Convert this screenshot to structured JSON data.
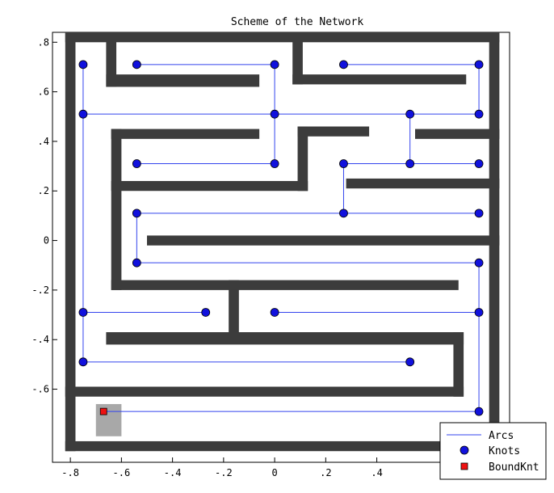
{
  "chart_data": {
    "type": "scatter",
    "title": "Scheme of the Network",
    "xlabel": "",
    "ylabel": "",
    "xlim": [
      -0.87,
      0.92
    ],
    "ylim": [
      -0.895,
      0.84
    ],
    "x_ticks": [
      -0.8,
      -0.6,
      -0.4,
      -0.2,
      0,
      0.2,
      0.4
    ],
    "y_ticks": [
      0.8,
      0.6,
      0.4,
      0.2,
      0,
      -0.2,
      -0.4,
      -0.6
    ],
    "legend": {
      "placement": "bottom-right",
      "entries": [
        "Arcs",
        "Knots",
        "BoundKnt"
      ]
    },
    "colors": {
      "arc": "#3344ee",
      "knot": "#1111dd",
      "bound_knot": "#ee1111",
      "wall": "#3c3c3c",
      "bound_region": "#a8a8a8"
    },
    "walls": [
      {
        "x1": -0.82,
        "y1": 0.8,
        "x2": 0.88,
        "y2": 0.84
      },
      {
        "x1": -0.82,
        "y1": -0.85,
        "x2": 0.88,
        "y2": -0.81
      },
      {
        "x1": -0.82,
        "y1": -0.85,
        "x2": -0.78,
        "y2": 0.84
      },
      {
        "x1": 0.84,
        "y1": -0.85,
        "x2": 0.88,
        "y2": 0.84
      },
      {
        "x1": -0.66,
        "y1": 0.62,
        "x2": -0.06,
        "y2": 0.67
      },
      {
        "x1": -0.66,
        "y1": 0.62,
        "x2": -0.62,
        "y2": 0.84
      },
      {
        "x1": 0.07,
        "y1": 0.63,
        "x2": 0.75,
        "y2": 0.67
      },
      {
        "x1": 0.07,
        "y1": 0.63,
        "x2": 0.11,
        "y2": 0.84
      },
      {
        "x1": -0.64,
        "y1": 0.41,
        "x2": -0.06,
        "y2": 0.45
      },
      {
        "x1": 0.09,
        "y1": 0.42,
        "x2": 0.37,
        "y2": 0.46
      },
      {
        "x1": 0.09,
        "y1": 0.2,
        "x2": 0.13,
        "y2": 0.46
      },
      {
        "x1": 0.55,
        "y1": 0.41,
        "x2": 0.88,
        "y2": 0.45
      },
      {
        "x1": -0.64,
        "y1": -0.2,
        "x2": -0.6,
        "y2": 0.45
      },
      {
        "x1": -0.64,
        "y1": 0.2,
        "x2": 0.13,
        "y2": 0.24
      },
      {
        "x1": 0.28,
        "y1": 0.21,
        "x2": 0.88,
        "y2": 0.25
      },
      {
        "x1": -0.5,
        "y1": -0.02,
        "x2": 0.88,
        "y2": 0.02
      },
      {
        "x1": -0.64,
        "y1": -0.2,
        "x2": 0.72,
        "y2": -0.16
      },
      {
        "x1": -0.18,
        "y1": -0.39,
        "x2": -0.14,
        "y2": -0.16
      },
      {
        "x1": -0.66,
        "y1": -0.42,
        "x2": 0.74,
        "y2": -0.37
      },
      {
        "x1": 0.7,
        "y1": -0.63,
        "x2": 0.74,
        "y2": -0.37
      },
      {
        "x1": -0.82,
        "y1": -0.63,
        "x2": 0.74,
        "y2": -0.59
      }
    ],
    "bound_region": {
      "x1": -0.7,
      "y1": -0.79,
      "x2": -0.6,
      "y2": -0.66
    },
    "knots": [
      [
        -0.75,
        0.71
      ],
      [
        -0.54,
        0.71
      ],
      [
        0.0,
        0.71
      ],
      [
        0.27,
        0.71
      ],
      [
        0.8,
        0.71
      ],
      [
        -0.75,
        0.51
      ],
      [
        0.0,
        0.51
      ],
      [
        0.53,
        0.51
      ],
      [
        0.8,
        0.51
      ],
      [
        -0.54,
        0.31
      ],
      [
        0.0,
        0.31
      ],
      [
        0.27,
        0.31
      ],
      [
        0.53,
        0.31
      ],
      [
        0.8,
        0.31
      ],
      [
        -0.54,
        0.11
      ],
      [
        0.27,
        0.11
      ],
      [
        0.8,
        0.11
      ],
      [
        -0.54,
        -0.09
      ],
      [
        0.8,
        -0.09
      ],
      [
        -0.75,
        -0.29
      ],
      [
        -0.27,
        -0.29
      ],
      [
        0.0,
        -0.29
      ],
      [
        0.8,
        -0.29
      ],
      [
        -0.75,
        -0.49
      ],
      [
        0.53,
        -0.49
      ],
      [
        0.8,
        -0.69
      ]
    ],
    "bound_knots": [
      [
        -0.67,
        -0.69
      ]
    ],
    "arcs": [
      [
        [
          -0.54,
          0.71
        ],
        [
          0.0,
          0.71
        ]
      ],
      [
        [
          0.27,
          0.71
        ],
        [
          0.8,
          0.71
        ]
      ],
      [
        [
          -0.75,
          0.71
        ],
        [
          -0.75,
          -0.49
        ]
      ],
      [
        [
          0.0,
          0.71
        ],
        [
          0.0,
          0.31
        ]
      ],
      [
        [
          -0.75,
          0.51
        ],
        [
          0.8,
          0.51
        ]
      ],
      [
        [
          0.8,
          0.71
        ],
        [
          0.8,
          0.51
        ]
      ],
      [
        [
          0.53,
          0.51
        ],
        [
          0.53,
          0.31
        ]
      ],
      [
        [
          -0.54,
          0.31
        ],
        [
          0.0,
          0.31
        ]
      ],
      [
        [
          0.27,
          0.31
        ],
        [
          0.8,
          0.31
        ]
      ],
      [
        [
          0.27,
          0.31
        ],
        [
          0.27,
          0.11
        ]
      ],
      [
        [
          -0.54,
          0.11
        ],
        [
          0.8,
          0.11
        ]
      ],
      [
        [
          -0.54,
          0.11
        ],
        [
          -0.54,
          -0.09
        ]
      ],
      [
        [
          -0.54,
          -0.09
        ],
        [
          0.8,
          -0.09
        ]
      ],
      [
        [
          0.8,
          -0.09
        ],
        [
          0.8,
          -0.69
        ]
      ],
      [
        [
          -0.75,
          -0.29
        ],
        [
          -0.27,
          -0.29
        ]
      ],
      [
        [
          0.0,
          -0.29
        ],
        [
          0.8,
          -0.29
        ]
      ],
      [
        [
          -0.75,
          -0.49
        ],
        [
          0.53,
          -0.49
        ]
      ],
      [
        [
          -0.67,
          -0.69
        ],
        [
          0.8,
          -0.69
        ]
      ]
    ]
  }
}
